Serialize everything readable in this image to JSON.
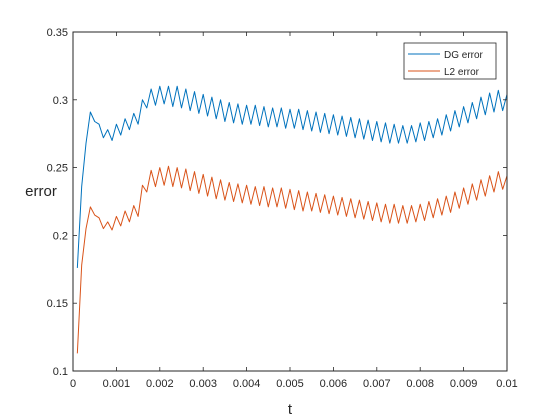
{
  "colors": {
    "dg": "#0072BD",
    "l2": "#D95319",
    "axis": "#262626",
    "background": "#ffffff"
  },
  "chart_data": {
    "type": "line",
    "xlabel": "t",
    "ylabel": "error",
    "xlim": [
      0,
      0.01
    ],
    "ylim": [
      0.1,
      0.35
    ],
    "xticks": [
      0,
      0.001,
      0.002,
      0.003,
      0.004,
      0.005,
      0.006,
      0.007,
      0.008,
      0.009,
      0.01
    ],
    "xtick_labels": [
      "0",
      "0.001",
      "0.002",
      "0.003",
      "0.004",
      "0.005",
      "0.006",
      "0.007",
      "0.008",
      "0.009",
      "0.01"
    ],
    "yticks": [
      0.1,
      0.15,
      0.2,
      0.25,
      0.3,
      0.35
    ],
    "ytick_labels": [
      "0.1",
      "0.15",
      "0.2",
      "0.25",
      "0.3",
      "0.35"
    ],
    "grid": false,
    "legend_position": "top-right",
    "x": [
      0.0001,
      0.0002,
      0.0003,
      0.0004,
      0.0005,
      0.0006,
      0.0007,
      0.0008,
      0.0009,
      0.001,
      0.0011,
      0.0012,
      0.0013,
      0.0014,
      0.0015,
      0.0016,
      0.0017,
      0.0018,
      0.0019,
      0.002,
      0.0021,
      0.0022,
      0.0023,
      0.0024,
      0.0025,
      0.0026,
      0.0027,
      0.0028,
      0.0029,
      0.003,
      0.0031,
      0.0032,
      0.0033,
      0.0034,
      0.0035,
      0.0036,
      0.0037,
      0.0038,
      0.0039,
      0.004,
      0.0041,
      0.0042,
      0.0043,
      0.0044,
      0.0045,
      0.0046,
      0.0047,
      0.0048,
      0.0049,
      0.005,
      0.0051,
      0.0052,
      0.0053,
      0.0054,
      0.0055,
      0.0056,
      0.0057,
      0.0058,
      0.0059,
      0.006,
      0.0061,
      0.0062,
      0.0063,
      0.0064,
      0.0065,
      0.0066,
      0.0067,
      0.0068,
      0.0069,
      0.007,
      0.0071,
      0.0072,
      0.0073,
      0.0074,
      0.0075,
      0.0076,
      0.0077,
      0.0078,
      0.0079,
      0.008,
      0.0081,
      0.0082,
      0.0083,
      0.0084,
      0.0085,
      0.0086,
      0.0087,
      0.0088,
      0.0089,
      0.009,
      0.0091,
      0.0092,
      0.0093,
      0.0094,
      0.0095,
      0.0096,
      0.0097,
      0.0098,
      0.0099,
      0.01
    ],
    "series": [
      {
        "name": "DG error",
        "color": "#0072BD",
        "values": [
          0.176,
          0.236,
          0.268,
          0.291,
          0.284,
          0.282,
          0.272,
          0.278,
          0.27,
          0.282,
          0.274,
          0.286,
          0.278,
          0.29,
          0.282,
          0.3,
          0.294,
          0.308,
          0.296,
          0.31,
          0.297,
          0.31,
          0.295,
          0.31,
          0.294,
          0.308,
          0.292,
          0.306,
          0.29,
          0.304,
          0.288,
          0.302,
          0.286,
          0.3,
          0.284,
          0.298,
          0.283,
          0.297,
          0.282,
          0.296,
          0.282,
          0.296,
          0.281,
          0.295,
          0.28,
          0.294,
          0.28,
          0.294,
          0.279,
          0.293,
          0.279,
          0.293,
          0.278,
          0.292,
          0.277,
          0.291,
          0.276,
          0.29,
          0.275,
          0.289,
          0.274,
          0.288,
          0.273,
          0.287,
          0.272,
          0.286,
          0.271,
          0.285,
          0.27,
          0.284,
          0.269,
          0.283,
          0.268,
          0.282,
          0.268,
          0.281,
          0.268,
          0.281,
          0.269,
          0.283,
          0.27,
          0.284,
          0.272,
          0.286,
          0.274,
          0.289,
          0.277,
          0.292,
          0.28,
          0.295,
          0.283,
          0.298,
          0.286,
          0.302,
          0.289,
          0.305,
          0.291,
          0.307,
          0.292,
          0.304
        ]
      },
      {
        "name": "L2 error",
        "color": "#D95319",
        "values": [
          0.113,
          0.178,
          0.205,
          0.221,
          0.215,
          0.213,
          0.205,
          0.21,
          0.204,
          0.214,
          0.207,
          0.218,
          0.21,
          0.222,
          0.214,
          0.237,
          0.232,
          0.248,
          0.236,
          0.25,
          0.237,
          0.251,
          0.236,
          0.25,
          0.235,
          0.249,
          0.233,
          0.247,
          0.231,
          0.245,
          0.229,
          0.243,
          0.227,
          0.241,
          0.226,
          0.239,
          0.225,
          0.238,
          0.224,
          0.237,
          0.223,
          0.236,
          0.222,
          0.236,
          0.221,
          0.235,
          0.221,
          0.235,
          0.22,
          0.234,
          0.219,
          0.233,
          0.218,
          0.232,
          0.218,
          0.231,
          0.217,
          0.23,
          0.216,
          0.229,
          0.215,
          0.228,
          0.214,
          0.227,
          0.213,
          0.226,
          0.212,
          0.225,
          0.211,
          0.224,
          0.21,
          0.223,
          0.209,
          0.223,
          0.209,
          0.222,
          0.209,
          0.222,
          0.21,
          0.223,
          0.211,
          0.225,
          0.213,
          0.227,
          0.215,
          0.229,
          0.217,
          0.232,
          0.22,
          0.235,
          0.223,
          0.238,
          0.226,
          0.241,
          0.229,
          0.244,
          0.232,
          0.247,
          0.234,
          0.244
        ]
      }
    ]
  }
}
